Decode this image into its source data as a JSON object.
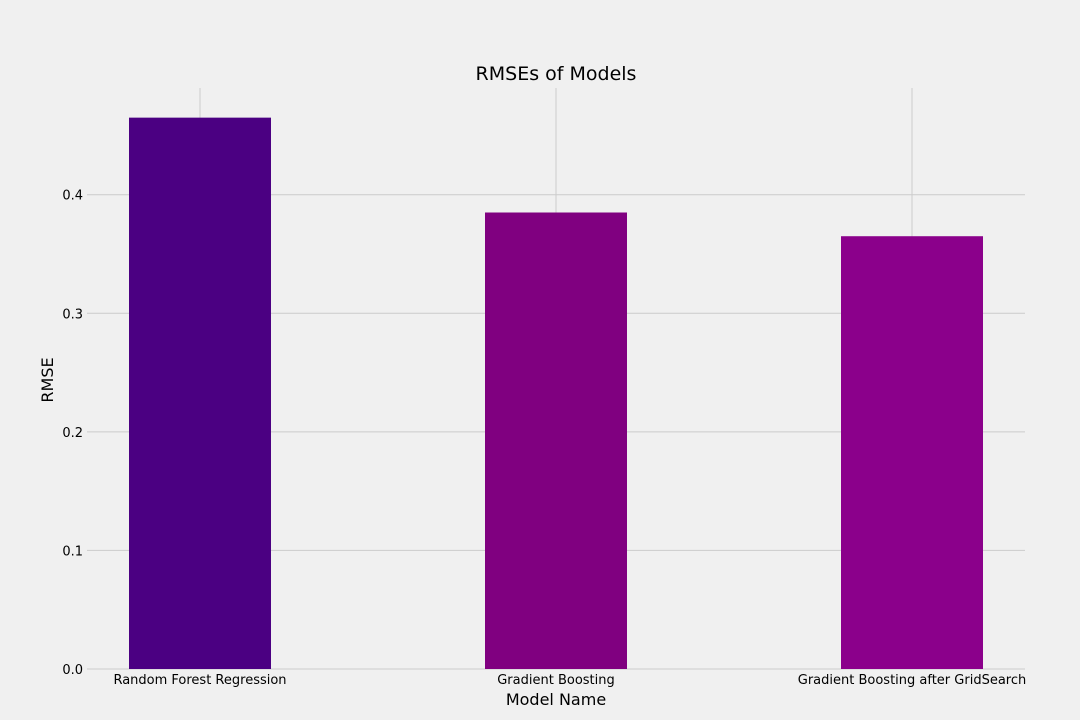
{
  "chart_data": {
    "type": "bar",
    "title": "RMSEs of Models",
    "xlabel": "Model Name",
    "ylabel": "RMSE",
    "categories": [
      "Random Forest Regression",
      "Gradient Boosting",
      "Gradient Boosting after GridSearch"
    ],
    "values": [
      0.465,
      0.385,
      0.365
    ],
    "colors": [
      "#4b0082",
      "#800080",
      "#8b008b"
    ],
    "ylim": [
      0,
      0.49
    ],
    "yticks": [
      "0.0",
      "0.1",
      "0.2",
      "0.3",
      "0.4"
    ],
    "grid": true,
    "legend": "none"
  },
  "theme": {
    "background": "#f0f0f0",
    "grid_color": "#cbcbcb"
  }
}
